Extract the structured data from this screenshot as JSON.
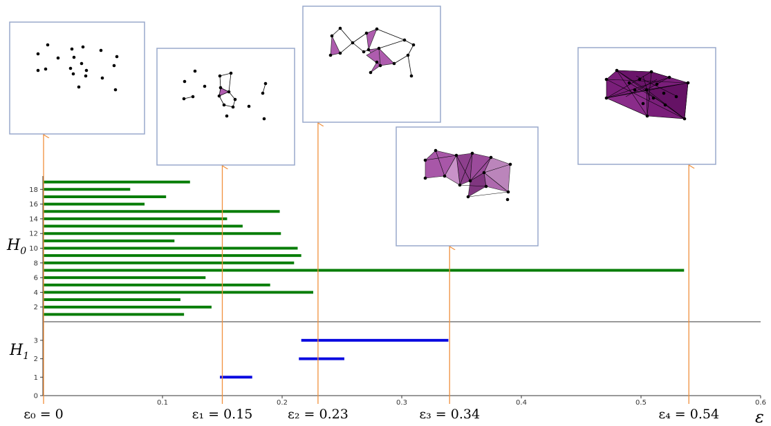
{
  "chart_data": {
    "type": "bar",
    "xlabel": "ε",
    "xlim": [
      0,
      0.6
    ],
    "x_ticks": [
      {
        "value": 0.1,
        "label": "0.1"
      },
      {
        "value": 0.2,
        "label": "0.2"
      },
      {
        "value": 0.3,
        "label": "0.3"
      },
      {
        "value": 0.4,
        "label": "0.4"
      },
      {
        "value": 0.5,
        "label": "0.5"
      },
      {
        "value": 0.6,
        "label": "0.6"
      }
    ],
    "panels": [
      {
        "name": "H0",
        "label_main": "H",
        "label_sub": "0",
        "color": "#067d06",
        "y_ticks": [
          "2",
          "4",
          "6",
          "8",
          "10",
          "12",
          "14",
          "16",
          "18"
        ],
        "bars": [
          {
            "index": 1,
            "birth": 0,
            "death": 0.118
          },
          {
            "index": 2,
            "birth": 0,
            "death": 0.141
          },
          {
            "index": 3,
            "birth": 0,
            "death": 0.115
          },
          {
            "index": 4,
            "birth": 0,
            "death": 0.226
          },
          {
            "index": 5,
            "birth": 0,
            "death": 0.19
          },
          {
            "index": 6,
            "birth": 0,
            "death": 0.136
          },
          {
            "index": 7,
            "birth": 0,
            "death": 0.536
          },
          {
            "index": 8,
            "birth": 0,
            "death": 0.21
          },
          {
            "index": 9,
            "birth": 0,
            "death": 0.216
          },
          {
            "index": 10,
            "birth": 0,
            "death": 0.213
          },
          {
            "index": 11,
            "birth": 0,
            "death": 0.11
          },
          {
            "index": 12,
            "birth": 0,
            "death": 0.199
          },
          {
            "index": 13,
            "birth": 0,
            "death": 0.167
          },
          {
            "index": 14,
            "birth": 0,
            "death": 0.154
          },
          {
            "index": 15,
            "birth": 0,
            "death": 0.198
          },
          {
            "index": 16,
            "birth": 0,
            "death": 0.085
          },
          {
            "index": 17,
            "birth": 0,
            "death": 0.103
          },
          {
            "index": 18,
            "birth": 0,
            "death": 0.073
          },
          {
            "index": 19,
            "birth": 0,
            "death": 0.123
          }
        ]
      },
      {
        "name": "H1",
        "label_main": "H",
        "label_sub": "1",
        "color": "#0a0ae0",
        "y_ticks": [
          "0",
          "1",
          "2",
          "3"
        ],
        "bars": [
          {
            "index": 1,
            "birth": 0.148,
            "death": 0.175
          },
          {
            "index": 2,
            "birth": 0.214,
            "death": 0.252
          },
          {
            "index": 3,
            "birth": 0.216,
            "death": 0.339
          }
        ]
      }
    ],
    "markers": [
      {
        "value": 0.0,
        "label": "ε₀ = 0"
      },
      {
        "value": 0.15,
        "label": "ε₁ = 0.15"
      },
      {
        "value": 0.23,
        "label": "ε₂ = 0.23"
      },
      {
        "value": 0.34,
        "label": "ε₃ = 0.34"
      },
      {
        "value": 0.54,
        "label": "ε₄ = 0.54"
      }
    ],
    "colors": {
      "arrow": "#f0903c",
      "simplex": "#8b1f8b",
      "frame": "#98a8cc"
    },
    "grid": false
  }
}
